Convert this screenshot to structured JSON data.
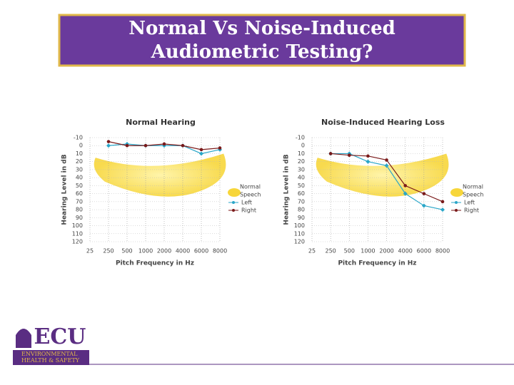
{
  "slide_title": [
    "Normal Vs Noise-Induced",
    "Audiometric Testing?"
  ],
  "logo": {
    "name": "ECU",
    "subtitle": [
      "ENVIRONMENTAL",
      "HEALTH & SAFETY"
    ]
  },
  "chart_data": [
    {
      "type": "line",
      "title": "Normal Hearing",
      "x_label": "Pitch Frequency in Hz",
      "y_label": "Hearing Level in dB",
      "categories": [
        "25",
        "250",
        "500",
        "1000",
        "2000",
        "4000",
        "6000",
        "8000"
      ],
      "ylim": [
        -10,
        120
      ],
      "y_inverted": true,
      "yticks": [
        -10,
        0,
        10,
        20,
        30,
        40,
        50,
        60,
        70,
        80,
        90,
        100,
        110,
        120
      ],
      "grid": true,
      "speech_legend": [
        "Normal",
        "Speech"
      ],
      "series": [
        {
          "name": "Left",
          "color": "#2aa6c8",
          "marker": "diamond",
          "values": [
            null,
            0,
            -2,
            0,
            0,
            0,
            10,
            5
          ]
        },
        {
          "name": "Right",
          "color": "#7a1a1a",
          "marker": "circle",
          "values": [
            null,
            -5,
            0,
            0,
            -2,
            0,
            5,
            3
          ]
        }
      ]
    },
    {
      "type": "line",
      "title": "Noise-Induced Hearing Loss",
      "x_label": "Pitch Frequency in Hz",
      "y_label": "Hearing Level in dB",
      "categories": [
        "25",
        "250",
        "500",
        "1000",
        "2000",
        "4000",
        "6000",
        "8000"
      ],
      "ylim": [
        -10,
        120
      ],
      "y_inverted": true,
      "yticks": [
        -10,
        0,
        10,
        20,
        30,
        40,
        50,
        60,
        70,
        80,
        90,
        100,
        110,
        120
      ],
      "grid": true,
      "speech_legend": [
        "Normal",
        "Speech"
      ],
      "series": [
        {
          "name": "Left",
          "color": "#2aa6c8",
          "marker": "diamond",
          "values": [
            null,
            10,
            10,
            20,
            25,
            60,
            75,
            80
          ]
        },
        {
          "name": "Right",
          "color": "#7a1a1a",
          "marker": "circle",
          "values": [
            null,
            10,
            12,
            13,
            18,
            50,
            60,
            70
          ]
        }
      ]
    }
  ]
}
